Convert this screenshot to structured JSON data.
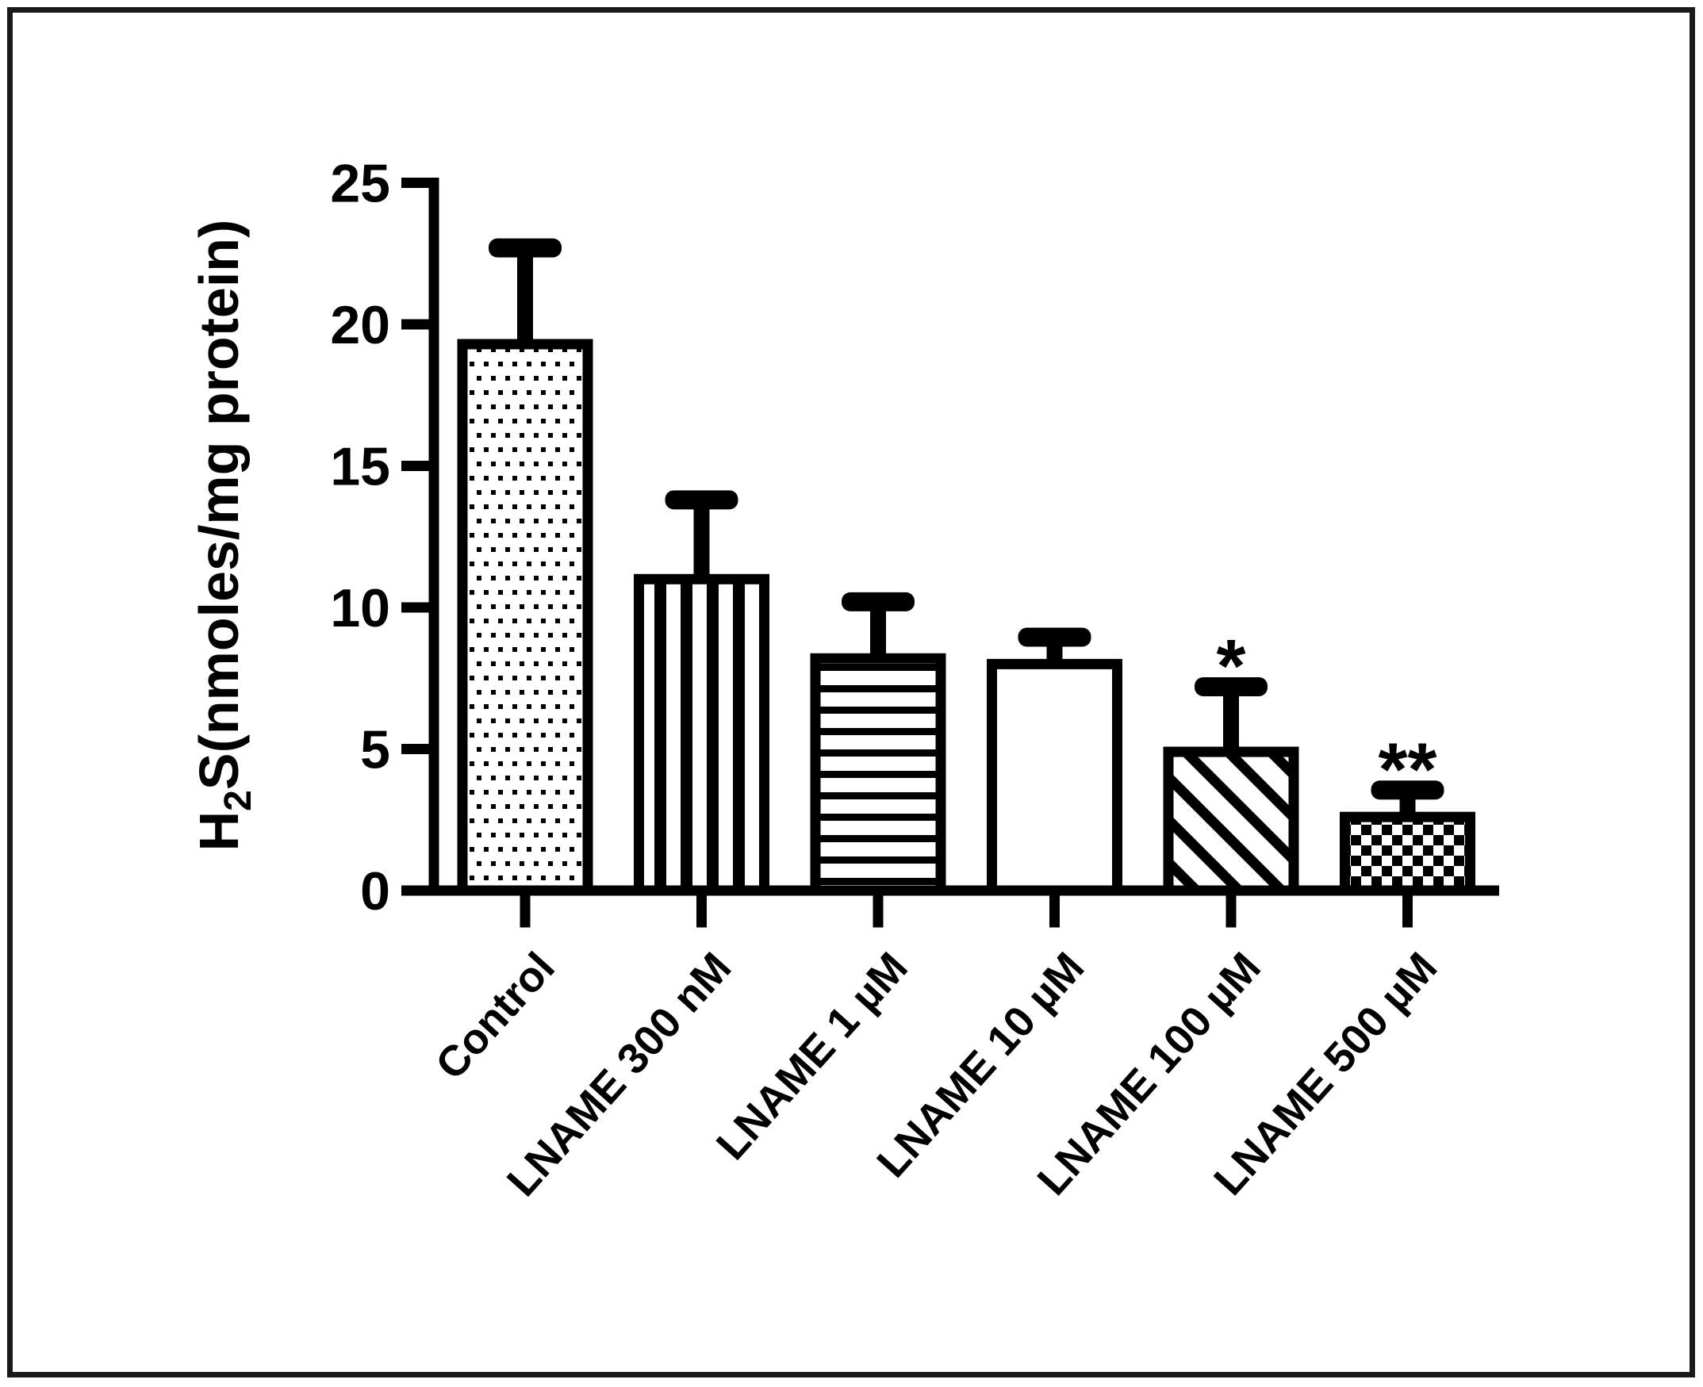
{
  "figure": {
    "background_color": "#ffffff",
    "frame_color": "#1a1a1a",
    "ink_color": "#000000",
    "bar_fill_color": "#ffffff"
  },
  "chart_data": {
    "type": "bar",
    "title": "",
    "ylabel_prefix": "H",
    "ylabel_subscript": "2",
    "ylabel_suffix": "S(nmoles/mg protein)",
    "ylabel_full": "H2S(nmoles/mg protein)",
    "xlabel": "",
    "ylim": [
      0,
      25
    ],
    "yticks": [
      0,
      5,
      10,
      15,
      20,
      25
    ],
    "grid": false,
    "legend_position": "none",
    "categories": [
      "Control",
      "LNAME 300 nM",
      "LNAME 1 µM",
      "LNAME 10 µM",
      "LNAME 100 µM",
      "LNAME 500 µM"
    ],
    "series": [
      {
        "name": "H2S (nmoles/mg protein)",
        "values": [
          19.3,
          11.0,
          8.2,
          8.0,
          4.9,
          2.6
        ]
      }
    ],
    "error_bars": {
      "direction": "upper-only",
      "values": [
        3.4,
        2.8,
        2.0,
        0.95,
        2.3,
        0.95
      ]
    },
    "annotations": [
      {
        "category_index": 4,
        "text": "*"
      },
      {
        "category_index": 5,
        "text": "**"
      }
    ],
    "bar_patterns": [
      "dots",
      "vertical-stripes",
      "horizontal-stripes",
      "plain",
      "diagonal-stripes",
      "checkerboard"
    ]
  }
}
